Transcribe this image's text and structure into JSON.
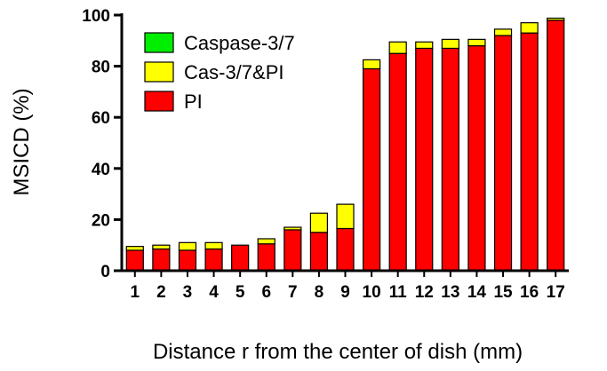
{
  "chart_data": {
    "type": "bar",
    "stacked": true,
    "xlabel": "Distance r from the center of dish (mm)",
    "ylabel": "MSICD (%)",
    "ylim": [
      0,
      100
    ],
    "yticks": [
      0,
      20,
      40,
      60,
      80,
      100
    ],
    "categories": [
      "1",
      "2",
      "3",
      "4",
      "5",
      "6",
      "7",
      "8",
      "9",
      "10",
      "11",
      "12",
      "13",
      "14",
      "15",
      "16",
      "17"
    ],
    "legend_position": "top-left",
    "series": [
      {
        "name": "PI",
        "color": "#ff0000",
        "values": [
          8,
          8.5,
          8,
          8.5,
          10,
          10.5,
          16,
          15,
          16.5,
          79,
          85,
          87,
          87,
          88,
          92,
          93,
          98
        ]
      },
      {
        "name": "Cas-3/7&PI",
        "color": "#ffff00",
        "values": [
          1.5,
          1.5,
          3,
          2.5,
          0,
          2,
          1,
          7.5,
          9.5,
          3.5,
          4.5,
          2.5,
          3.5,
          2.5,
          2.5,
          4,
          0.8
        ]
      },
      {
        "name": "Caspase-3/7",
        "color": "#00ee00",
        "values": [
          0,
          0,
          0,
          0,
          0,
          0,
          0,
          0,
          0,
          0,
          0,
          0,
          0,
          0,
          0,
          0,
          0
        ]
      }
    ]
  }
}
